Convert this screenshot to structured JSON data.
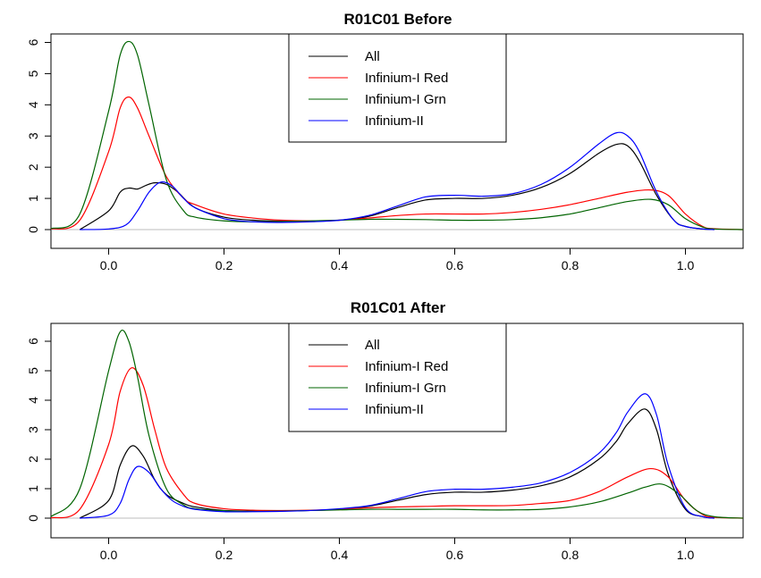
{
  "colors": {
    "All": "#000000",
    "Infinium-I Red": "#ff0000",
    "Infinium-I Grn": "#006400",
    "Infinium-II": "#0000ff"
  },
  "chart_data": [
    {
      "type": "line",
      "title": "R01C01 Before",
      "xlabel": "",
      "ylabel": "",
      "xlim": [
        -0.1,
        1.1
      ],
      "ylim": [
        0,
        6
      ],
      "x_ticks": [
        0.0,
        0.2,
        0.4,
        0.6,
        0.8,
        1.0
      ],
      "x_tick_labels": [
        "0.0",
        "0.2",
        "0.4",
        "0.6",
        "0.8",
        "1.0"
      ],
      "y_ticks": [
        0,
        1,
        2,
        3,
        4,
        5,
        6
      ],
      "y_tick_labels": [
        "0",
        "1",
        "2",
        "3",
        "4",
        "5",
        "6"
      ],
      "grid": false,
      "legend": {
        "position": "top-center",
        "entries": [
          "All",
          "Infinium-I Red",
          "Infinium-I Grn",
          "Infinium-II"
        ]
      },
      "series": [
        {
          "name": "All",
          "x": [
            -0.05,
            0.0,
            0.02,
            0.035,
            0.05,
            0.065,
            0.08,
            0.1,
            0.12,
            0.15,
            0.2,
            0.25,
            0.3,
            0.35,
            0.4,
            0.45,
            0.5,
            0.55,
            0.6,
            0.65,
            0.7,
            0.75,
            0.8,
            0.85,
            0.88,
            0.9,
            0.92,
            0.95,
            0.98,
            1.0,
            1.03,
            1.05
          ],
          "values": [
            0.0,
            0.6,
            1.2,
            1.33,
            1.3,
            1.42,
            1.5,
            1.45,
            1.2,
            0.7,
            0.4,
            0.3,
            0.27,
            0.27,
            0.3,
            0.42,
            0.7,
            0.95,
            1.0,
            1.0,
            1.1,
            1.35,
            1.8,
            2.45,
            2.73,
            2.68,
            2.2,
            1.1,
            0.3,
            0.1,
            0.02,
            0.0
          ]
        },
        {
          "name": "Infinium-I Red",
          "x": [
            -0.1,
            -0.05,
            0.0,
            0.02,
            0.035,
            0.05,
            0.07,
            0.1,
            0.13,
            0.15,
            0.2,
            0.25,
            0.3,
            0.35,
            0.4,
            0.45,
            0.5,
            0.55,
            0.6,
            0.65,
            0.7,
            0.75,
            0.8,
            0.85,
            0.9,
            0.94,
            0.97,
            1.0,
            1.03,
            1.05,
            1.1
          ],
          "values": [
            0.02,
            0.3,
            2.5,
            3.9,
            4.25,
            3.9,
            3.0,
            1.7,
            1.0,
            0.8,
            0.5,
            0.37,
            0.3,
            0.28,
            0.3,
            0.37,
            0.45,
            0.5,
            0.5,
            0.5,
            0.55,
            0.65,
            0.8,
            1.0,
            1.2,
            1.27,
            1.1,
            0.5,
            0.1,
            0.03,
            0.0
          ]
        },
        {
          "name": "Infinium-I Grn",
          "x": [
            -0.1,
            -0.05,
            0.0,
            0.02,
            0.035,
            0.05,
            0.07,
            0.1,
            0.13,
            0.15,
            0.2,
            0.25,
            0.3,
            0.35,
            0.4,
            0.45,
            0.5,
            0.55,
            0.6,
            0.65,
            0.7,
            0.75,
            0.8,
            0.85,
            0.9,
            0.94,
            0.97,
            1.0,
            1.03,
            1.05,
            1.1
          ],
          "values": [
            0.03,
            0.5,
            3.8,
            5.6,
            6.03,
            5.6,
            4.0,
            1.6,
            0.6,
            0.4,
            0.28,
            0.25,
            0.26,
            0.28,
            0.3,
            0.33,
            0.33,
            0.32,
            0.3,
            0.3,
            0.32,
            0.38,
            0.5,
            0.7,
            0.9,
            0.97,
            0.8,
            0.35,
            0.08,
            0.02,
            0.0
          ]
        },
        {
          "name": "Infinium-II",
          "x": [
            -0.05,
            0.0,
            0.03,
            0.05,
            0.07,
            0.09,
            0.11,
            0.13,
            0.15,
            0.2,
            0.25,
            0.3,
            0.35,
            0.4,
            0.45,
            0.5,
            0.55,
            0.6,
            0.65,
            0.7,
            0.75,
            0.8,
            0.85,
            0.88,
            0.9,
            0.92,
            0.95,
            0.98,
            1.0,
            1.03,
            1.05
          ],
          "values": [
            0.0,
            0.02,
            0.15,
            0.6,
            1.2,
            1.52,
            1.4,
            1.0,
            0.7,
            0.35,
            0.25,
            0.23,
            0.25,
            0.3,
            0.45,
            0.75,
            1.05,
            1.1,
            1.07,
            1.15,
            1.45,
            2.0,
            2.75,
            3.1,
            3.0,
            2.5,
            1.2,
            0.3,
            0.1,
            0.02,
            0.0
          ]
        }
      ]
    },
    {
      "type": "line",
      "title": "R01C01 After",
      "xlabel": "",
      "ylabel": "",
      "xlim": [
        -0.1,
        1.1
      ],
      "ylim": [
        0,
        6
      ],
      "x_ticks": [
        0.0,
        0.2,
        0.4,
        0.6,
        0.8,
        1.0
      ],
      "x_tick_labels": [
        "0.0",
        "0.2",
        "0.4",
        "0.6",
        "0.8",
        "1.0"
      ],
      "y_ticks": [
        0,
        1,
        2,
        3,
        4,
        5,
        6
      ],
      "y_tick_labels": [
        "0",
        "1",
        "2",
        "3",
        "4",
        "5",
        "6"
      ],
      "grid": false,
      "legend": {
        "position": "top-center",
        "entries": [
          "All",
          "Infinium-I Red",
          "Infinium-I Grn",
          "Infinium-II"
        ]
      },
      "series": [
        {
          "name": "All",
          "x": [
            -0.05,
            0.0,
            0.02,
            0.04,
            0.06,
            0.08,
            0.1,
            0.13,
            0.15,
            0.2,
            0.25,
            0.3,
            0.35,
            0.4,
            0.45,
            0.5,
            0.55,
            0.6,
            0.65,
            0.7,
            0.75,
            0.8,
            0.85,
            0.88,
            0.9,
            0.93,
            0.95,
            0.97,
            1.0,
            1.03,
            1.05
          ],
          "values": [
            0.0,
            0.6,
            1.8,
            2.45,
            2.1,
            1.3,
            0.8,
            0.5,
            0.38,
            0.26,
            0.24,
            0.24,
            0.26,
            0.3,
            0.4,
            0.6,
            0.8,
            0.88,
            0.88,
            0.95,
            1.1,
            1.4,
            2.0,
            2.6,
            3.2,
            3.7,
            3.0,
            1.5,
            0.3,
            0.05,
            0.0
          ]
        },
        {
          "name": "Infinium-I Red",
          "x": [
            -0.1,
            -0.05,
            0.0,
            0.02,
            0.04,
            0.06,
            0.08,
            0.1,
            0.13,
            0.15,
            0.2,
            0.25,
            0.3,
            0.35,
            0.4,
            0.45,
            0.5,
            0.55,
            0.6,
            0.65,
            0.7,
            0.75,
            0.8,
            0.85,
            0.9,
            0.94,
            0.97,
            1.0,
            1.03,
            1.05,
            1.1
          ],
          "values": [
            0.01,
            0.3,
            2.5,
            4.3,
            5.1,
            4.5,
            3.0,
            1.7,
            0.8,
            0.5,
            0.32,
            0.27,
            0.26,
            0.27,
            0.3,
            0.35,
            0.38,
            0.4,
            0.42,
            0.42,
            0.43,
            0.5,
            0.6,
            0.9,
            1.4,
            1.68,
            1.4,
            0.6,
            0.12,
            0.03,
            0.0
          ]
        },
        {
          "name": "Infinium-I Grn",
          "x": [
            -0.1,
            -0.05,
            0.0,
            0.02,
            0.035,
            0.05,
            0.07,
            0.1,
            0.13,
            0.15,
            0.2,
            0.25,
            0.3,
            0.35,
            0.4,
            0.45,
            0.5,
            0.55,
            0.6,
            0.65,
            0.7,
            0.75,
            0.8,
            0.85,
            0.9,
            0.93,
            0.96,
            0.99,
            1.02,
            1.05,
            1.1
          ],
          "values": [
            0.05,
            1.0,
            5.0,
            6.32,
            6.0,
            4.8,
            2.8,
            1.0,
            0.45,
            0.32,
            0.25,
            0.23,
            0.24,
            0.26,
            0.28,
            0.3,
            0.3,
            0.3,
            0.3,
            0.28,
            0.28,
            0.3,
            0.38,
            0.55,
            0.85,
            1.05,
            1.15,
            0.8,
            0.25,
            0.05,
            0.0
          ]
        },
        {
          "name": "Infinium-II",
          "x": [
            -0.05,
            0.0,
            0.02,
            0.035,
            0.05,
            0.07,
            0.09,
            0.11,
            0.13,
            0.15,
            0.2,
            0.25,
            0.3,
            0.35,
            0.4,
            0.45,
            0.5,
            0.55,
            0.6,
            0.65,
            0.7,
            0.75,
            0.8,
            0.85,
            0.88,
            0.9,
            0.93,
            0.95,
            0.97,
            1.0,
            1.03,
            1.05
          ],
          "values": [
            0.0,
            0.1,
            0.5,
            1.3,
            1.75,
            1.55,
            1.0,
            0.6,
            0.4,
            0.3,
            0.22,
            0.22,
            0.23,
            0.26,
            0.32,
            0.42,
            0.65,
            0.9,
            0.98,
            0.98,
            1.05,
            1.2,
            1.55,
            2.2,
            2.9,
            3.6,
            4.22,
            3.5,
            1.8,
            0.35,
            0.05,
            0.0
          ]
        }
      ]
    }
  ]
}
